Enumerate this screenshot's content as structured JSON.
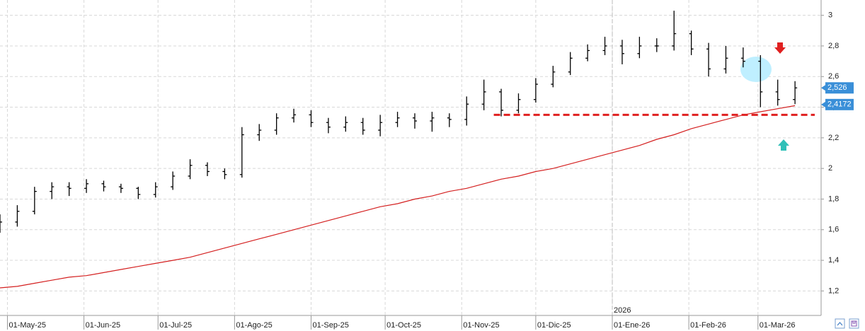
{
  "chart_data": {
    "type": "ohlc",
    "x": [
      "2025-04-28",
      "2025-05-05",
      "2025-05-12",
      "2025-05-19",
      "2025-05-26",
      "2025-06-02",
      "2025-06-09",
      "2025-06-16",
      "2025-06-23",
      "2025-06-30",
      "2025-07-07",
      "2025-07-14",
      "2025-07-21",
      "2025-07-28",
      "2025-08-04",
      "2025-08-11",
      "2025-08-18",
      "2025-08-25",
      "2025-09-01",
      "2025-09-08",
      "2025-09-15",
      "2025-09-22",
      "2025-09-29",
      "2025-10-06",
      "2025-10-13",
      "2025-10-20",
      "2025-10-27",
      "2025-11-03",
      "2025-11-10",
      "2025-11-17",
      "2025-11-24",
      "2025-12-01",
      "2025-12-08",
      "2025-12-15",
      "2025-12-22",
      "2025-12-29",
      "2026-01-05",
      "2026-01-12",
      "2026-01-19",
      "2026-01-26",
      "2026-02-02",
      "2026-02-09",
      "2026-02-16",
      "2026-02-23",
      "2026-03-02",
      "2026-03-09",
      "2026-03-16"
    ],
    "open": [
      1.6,
      1.65,
      1.72,
      1.85,
      1.88,
      1.87,
      1.9,
      1.88,
      1.87,
      1.83,
      1.88,
      1.95,
      2.02,
      1.98,
      1.96,
      2.22,
      2.25,
      2.33,
      2.35,
      2.3,
      2.27,
      2.3,
      2.25,
      2.3,
      2.33,
      2.31,
      2.33,
      2.32,
      2.42,
      2.5,
      2.38,
      2.45,
      2.55,
      2.63,
      2.72,
      2.77,
      2.8,
      2.75,
      2.8,
      2.8,
      2.88,
      2.78,
      2.65,
      2.72,
      2.7,
      2.5,
      2.45
    ],
    "high": [
      1.7,
      1.76,
      1.88,
      1.91,
      1.91,
      1.93,
      1.92,
      1.9,
      1.88,
      1.91,
      1.98,
      2.06,
      2.04,
      2.0,
      2.27,
      2.29,
      2.36,
      2.39,
      2.38,
      2.33,
      2.34,
      2.33,
      2.35,
      2.37,
      2.36,
      2.37,
      2.36,
      2.47,
      2.58,
      2.52,
      2.49,
      2.59,
      2.67,
      2.76,
      2.81,
      2.86,
      2.84,
      2.86,
      2.85,
      3.03,
      2.9,
      2.82,
      2.8,
      2.79,
      2.74,
      2.58,
      2.57
    ],
    "low": [
      1.58,
      1.62,
      1.7,
      1.8,
      1.82,
      1.84,
      1.85,
      1.84,
      1.8,
      1.81,
      1.86,
      1.93,
      1.95,
      1.93,
      1.94,
      2.18,
      2.22,
      2.3,
      2.27,
      2.23,
      2.24,
      2.22,
      2.21,
      2.27,
      2.26,
      2.24,
      2.27,
      2.28,
      2.38,
      2.34,
      2.36,
      2.43,
      2.53,
      2.61,
      2.7,
      2.74,
      2.68,
      2.72,
      2.76,
      2.77,
      2.74,
      2.6,
      2.62,
      2.66,
      2.4,
      2.41,
      2.42
    ],
    "close": [
      1.65,
      1.72,
      1.85,
      1.88,
      1.87,
      1.9,
      1.88,
      1.87,
      1.83,
      1.88,
      1.95,
      2.02,
      1.98,
      1.96,
      2.22,
      2.25,
      2.33,
      2.35,
      2.3,
      2.27,
      2.3,
      2.25,
      2.3,
      2.33,
      2.31,
      2.33,
      2.32,
      2.42,
      2.5,
      2.38,
      2.45,
      2.55,
      2.63,
      2.72,
      2.77,
      2.8,
      2.75,
      2.8,
      2.8,
      2.88,
      2.78,
      2.65,
      2.72,
      2.7,
      2.5,
      2.45,
      2.526
    ],
    "color": "#000000",
    "moving_average": {
      "color": "#d42020",
      "values": [
        1.22,
        1.23,
        1.25,
        1.27,
        1.29,
        1.3,
        1.32,
        1.34,
        1.36,
        1.38,
        1.4,
        1.42,
        1.45,
        1.48,
        1.51,
        1.54,
        1.57,
        1.6,
        1.63,
        1.66,
        1.69,
        1.72,
        1.75,
        1.77,
        1.8,
        1.82,
        1.85,
        1.87,
        1.9,
        1.93,
        1.95,
        1.98,
        2.0,
        2.03,
        2.06,
        2.09,
        2.12,
        2.15,
        2.19,
        2.22,
        2.26,
        2.29,
        2.32,
        2.35,
        2.37,
        2.39,
        2.41
      ]
    },
    "price_tag": {
      "value": 2.526,
      "label": "2,526",
      "color": "#3a8fd8"
    },
    "ma_tag": {
      "value": 2.4172,
      "label": "2,4172",
      "color": "#3a8fd8"
    },
    "support_line": {
      "value": 2.35,
      "from": "2025-11-14",
      "to": "2026-03-24",
      "color": "#e02020"
    },
    "year_marker": {
      "date": "2026-01-01",
      "label": "2026"
    },
    "xlim": [
      "2025-04-28",
      "2026-03-26"
    ],
    "xticks": [
      {
        "value": "2025-05-01",
        "label": "01-May-25"
      },
      {
        "value": "2025-06-01",
        "label": "01-Jun-25"
      },
      {
        "value": "2025-07-01",
        "label": "01-Jul-25"
      },
      {
        "value": "2025-08-01",
        "label": "01-Ago-25"
      },
      {
        "value": "2025-09-01",
        "label": "01-Sep-25"
      },
      {
        "value": "2025-10-01",
        "label": "01-Oct-25"
      },
      {
        "value": "2025-11-01",
        "label": "01-Nov-25"
      },
      {
        "value": "2025-12-01",
        "label": "01-Dic-25"
      },
      {
        "value": "2026-01-01",
        "label": "01-Ene-26"
      },
      {
        "value": "2026-02-01",
        "label": "01-Feb-26"
      },
      {
        "value": "2026-03-01",
        "label": "01-Mar-26"
      }
    ],
    "ylim": [
      1.04,
      3.1
    ],
    "yticks": [
      {
        "value": 1.2,
        "label": "1,2"
      },
      {
        "value": 1.4,
        "label": "1,4"
      },
      {
        "value": 1.6,
        "label": "1,6"
      },
      {
        "value": 1.8,
        "label": "1,8"
      },
      2,
      {
        "value": 2.2,
        "label": "2,2"
      },
      {
        "value": 2.4,
        "label": "2,4"
      },
      {
        "value": 2.6,
        "label": "2,6"
      },
      {
        "value": 2.8,
        "label": "2,8"
      },
      3
    ],
    "grid": true
  }
}
